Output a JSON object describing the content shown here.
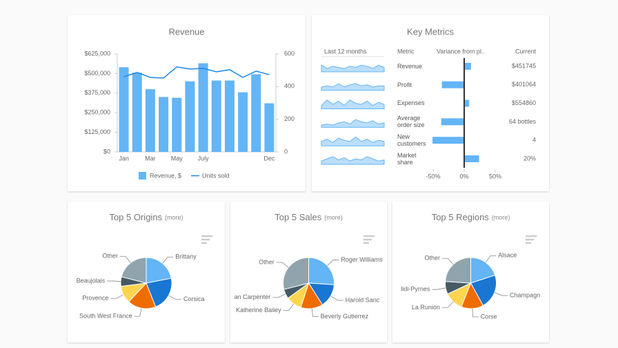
{
  "chart_data": [
    {
      "type": "bar",
      "title": "Revenue",
      "categories": [
        "Jan",
        null,
        "Mar",
        null,
        "May",
        null,
        "July",
        null,
        null,
        null,
        null,
        "Dec"
      ],
      "series": [
        {
          "name": "Revenue, $",
          "color": "#64b5f6",
          "type": "bar",
          "values": [
            540000,
            505000,
            400000,
            350000,
            345000,
            450000,
            565000,
            455000,
            455000,
            380000,
            495000,
            310000
          ]
        },
        {
          "name": "Units sold",
          "color": "#1e88e5",
          "type": "line",
          "axis": "y2",
          "values": [
            460,
            486,
            456,
            452,
            520,
            507,
            511,
            490,
            503,
            456,
            494,
            473
          ]
        }
      ],
      "ylim": [
        0,
        625000
      ],
      "yticks": [
        {
          "value": 0,
          "label": "$0"
        },
        {
          "value": 125000,
          "label": "$125,000"
        },
        {
          "value": 250000,
          "label": "$250,000"
        },
        {
          "value": 375000,
          "label": "$375,000"
        },
        {
          "value": 500000,
          "label": "$500,000"
        },
        {
          "value": 625000,
          "label": "$625,000"
        }
      ],
      "y2lim": [
        0,
        600
      ],
      "y2ticks": [
        0,
        200,
        400,
        600
      ],
      "legend": "bottom"
    },
    {
      "type": "bullet",
      "title": "Key Metrics",
      "columns": [
        "Last 12 months",
        "Metric",
        "Variance from pl..",
        "Current"
      ],
      "color": "#64b5f6",
      "sparkline_ylim": [
        0,
        10
      ],
      "rows": [
        {
          "metric": "Revenue",
          "sparkline": [
            6,
            3,
            5,
            4,
            3,
            5,
            4,
            6,
            5,
            3,
            6,
            4
          ],
          "variance": 11,
          "current": "$451745"
        },
        {
          "metric": "Profit",
          "sparkline": [
            3,
            4,
            3,
            6,
            3,
            5,
            6,
            4,
            5,
            3,
            4,
            4
          ],
          "variance": -36,
          "current": "$401064"
        },
        {
          "metric": "Expenses",
          "sparkline": [
            3,
            8,
            4,
            7,
            3,
            8,
            5,
            4,
            7,
            3,
            6,
            4
          ],
          "variance": 8,
          "current": "$554860"
        },
        {
          "metric": "Average order size",
          "sparkline": [
            2,
            3,
            2,
            4,
            5,
            3,
            7,
            5,
            4,
            6,
            3,
            4
          ],
          "variance": -37,
          "current": "64 bottles"
        },
        {
          "metric": "New customers",
          "sparkline": [
            4,
            6,
            3,
            7,
            5,
            4,
            8,
            4,
            6,
            3,
            5,
            4
          ],
          "variance": -51,
          "current": "4"
        },
        {
          "metric": "Market share",
          "sparkline": [
            3,
            5,
            7,
            4,
            6,
            3,
            5,
            4,
            7,
            5,
            3,
            4
          ],
          "variance": 24,
          "current": "20%"
        }
      ],
      "xlim": [
        -60,
        60
      ],
      "xticks": [
        {
          "value": -50,
          "label": "-50%"
        },
        {
          "value": 0,
          "label": "0%"
        },
        {
          "value": 50,
          "label": "50%"
        }
      ]
    },
    {
      "type": "pie",
      "title": "Top 5 Origins",
      "subtitle": "(more)",
      "categories": [
        "Brittany",
        "Corsica",
        "South West France",
        "Provence",
        "Beaujolais",
        "Other"
      ],
      "values": [
        22,
        22,
        18,
        11,
        6,
        21
      ],
      "colors": [
        "#64b5f6",
        "#1976d2",
        "#ef6c00",
        "#ffd54f",
        "#455a64",
        "#90a4ae"
      ]
    },
    {
      "type": "pie",
      "title": "Top 5 Sales",
      "subtitle": "(more)",
      "categories": [
        "Roger Williams",
        "Harold Sanc",
        "Beverly Gutierrez",
        "Katherine Bailey",
        "an Carpenter",
        "Other"
      ],
      "values": [
        26,
        15,
        14,
        10,
        6,
        29
      ],
      "colors": [
        "#64b5f6",
        "#1976d2",
        "#ef6c00",
        "#ffd54f",
        "#455a64",
        "#90a4ae"
      ]
    },
    {
      "type": "pie",
      "title": "Top 5 Regions",
      "subtitle": "(more)",
      "categories": [
        "Alsace",
        "Champagn",
        "Corse",
        "La Runion",
        "lidi-Pyrnes",
        "Other"
      ],
      "values": [
        20,
        22,
        14,
        12,
        8,
        24
      ],
      "colors": [
        "#64b5f6",
        "#1976d2",
        "#ef6c00",
        "#ffd54f",
        "#455a64",
        "#90a4ae"
      ]
    }
  ]
}
